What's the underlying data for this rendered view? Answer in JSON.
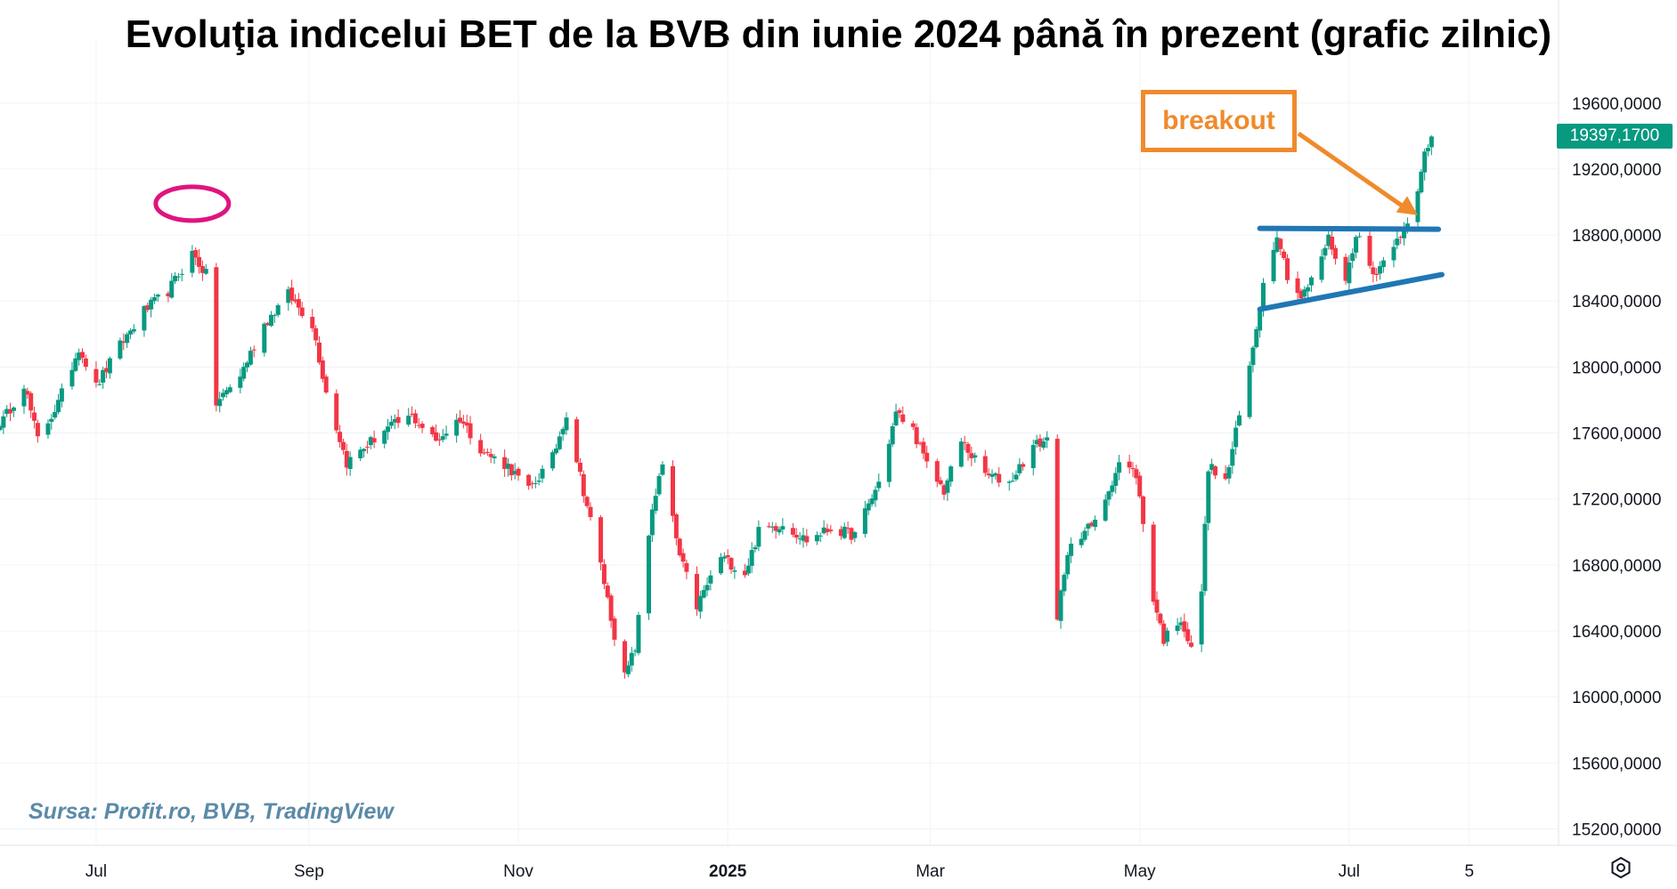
{
  "chart_data": {
    "type": "candlestick",
    "title": "Evoluţia indicelui BET de la BVB din iunie 2024 până în prezent (grafic zilnic)",
    "source": "Sursa: Profit.ro, BVB, TradingView",
    "y_ticks": [
      "19600,0000",
      "19200,0000",
      "18800,0000",
      "18400,0000",
      "18000,0000",
      "17600,0000",
      "17200,0000",
      "16800,0000",
      "16400,0000",
      "16000,0000",
      "15600,0000",
      "15200,0000"
    ],
    "y_tick_values": [
      19600,
      19200,
      18800,
      18400,
      18000,
      17600,
      17200,
      16800,
      16400,
      16000,
      15600,
      15200
    ],
    "x_ticks": [
      {
        "label": "Jul",
        "date": "2024-07-01"
      },
      {
        "label": "Sep",
        "date": "2024-09-01"
      },
      {
        "label": "Nov",
        "date": "2024-11-01"
      },
      {
        "label": "2025",
        "date": "2025-01-01",
        "bold": true
      },
      {
        "label": "Mar",
        "date": "2025-03-01"
      },
      {
        "label": "May",
        "date": "2025-05-01"
      },
      {
        "label": "Jul",
        "date": "2025-07-01"
      },
      {
        "label": "5",
        "date": "2025-08-05"
      }
    ],
    "ylim": [
      15100,
      19820
    ],
    "xlim": [
      "2024-06-03",
      "2025-08-31"
    ],
    "last_price": "19397,1700",
    "last_price_value": 19397.17,
    "up_color": "#089981",
    "down_color": "#f23645",
    "anchor_closes": [
      [
        "2024-06-03",
        17640
      ],
      [
        "2024-06-10",
        17900
      ],
      [
        "2024-06-14",
        17560
      ],
      [
        "2024-06-20",
        17780
      ],
      [
        "2024-06-26",
        18120
      ],
      [
        "2024-07-01",
        17880
      ],
      [
        "2024-07-08",
        18130
      ],
      [
        "2024-07-15",
        18340
      ],
      [
        "2024-07-22",
        18460
      ],
      [
        "2024-07-29",
        18690
      ],
      [
        "2024-08-02",
        18560
      ],
      [
        "2024-08-05",
        17780
      ],
      [
        "2024-08-12",
        17950
      ],
      [
        "2024-08-19",
        18260
      ],
      [
        "2024-08-26",
        18440
      ],
      [
        "2024-09-02",
        18260
      ],
      [
        "2024-09-06",
        17850
      ],
      [
        "2024-09-12",
        17420
      ],
      [
        "2024-09-23",
        17620
      ],
      [
        "2024-10-01",
        17700
      ],
      [
        "2024-10-08",
        17550
      ],
      [
        "2024-10-15",
        17690
      ],
      [
        "2024-10-22",
        17480
      ],
      [
        "2024-10-29",
        17400
      ],
      [
        "2024-11-04",
        17250
      ],
      [
        "2024-11-11",
        17450
      ],
      [
        "2024-11-15",
        17720
      ],
      [
        "2024-11-20",
        17250
      ],
      [
        "2024-11-25",
        16800
      ],
      [
        "2024-11-29",
        16380
      ],
      [
        "2024-12-02",
        16120
      ],
      [
        "2024-12-05",
        16300
      ],
      [
        "2024-12-10",
        17150
      ],
      [
        "2024-12-13",
        17400
      ],
      [
        "2024-12-18",
        16850
      ],
      [
        "2024-12-23",
        16550
      ],
      [
        "2024-12-30",
        16850
      ],
      [
        "2025-01-06",
        16750
      ],
      [
        "2025-01-10",
        17000
      ],
      [
        "2025-01-17",
        17050
      ],
      [
        "2025-01-24",
        16950
      ],
      [
        "2025-01-31",
        17020
      ],
      [
        "2025-02-07",
        16980
      ],
      [
        "2025-02-14",
        17300
      ],
      [
        "2025-02-19",
        17720
      ],
      [
        "2025-02-24",
        17620
      ],
      [
        "2025-02-28",
        17400
      ],
      [
        "2025-03-05",
        17250
      ],
      [
        "2025-03-10",
        17550
      ],
      [
        "2025-03-17",
        17350
      ],
      [
        "2025-03-24",
        17300
      ],
      [
        "2025-03-31",
        17520
      ],
      [
        "2025-04-04",
        17560
      ],
      [
        "2025-04-07",
        16500
      ],
      [
        "2025-04-11",
        16950
      ],
      [
        "2025-04-18",
        17050
      ],
      [
        "2025-04-25",
        17420
      ],
      [
        "2025-04-30",
        17350
      ],
      [
        "2025-05-05",
        16600
      ],
      [
        "2025-05-08",
        16350
      ],
      [
        "2025-05-13",
        16480
      ],
      [
        "2025-05-16",
        16280
      ],
      [
        "2025-05-19",
        16650
      ],
      [
        "2025-05-21",
        17400
      ],
      [
        "2025-05-26",
        17300
      ],
      [
        "2025-06-02",
        18000
      ],
      [
        "2025-06-06",
        18500
      ],
      [
        "2025-06-10",
        18820
      ],
      [
        "2025-06-13",
        18560
      ],
      [
        "2025-06-17",
        18420
      ],
      [
        "2025-06-20",
        18520
      ],
      [
        "2025-06-25",
        18780
      ],
      [
        "2025-06-30",
        18520
      ],
      [
        "2025-07-03",
        18820
      ],
      [
        "2025-07-08",
        18560
      ],
      [
        "2025-07-11",
        18640
      ],
      [
        "2025-07-15",
        18800
      ],
      [
        "2025-07-18",
        18850
      ],
      [
        "2025-07-21",
        19050
      ],
      [
        "2025-07-23",
        19300
      ],
      [
        "2025-07-25",
        19397
      ]
    ],
    "annotations": [
      {
        "type": "ellipse",
        "color": "#e0147f",
        "center": [
          "2024-07-29",
          18990
        ]
      },
      {
        "type": "line",
        "color": "#1f77b4",
        "from": [
          "2025-06-05",
          18840
        ],
        "to": [
          "2025-07-27",
          18835
        ]
      },
      {
        "type": "line",
        "color": "#1f77b4",
        "from": [
          "2025-06-05",
          18350
        ],
        "to": [
          "2025-07-28",
          18560
        ]
      },
      {
        "type": "arrow",
        "color": "#f08a2c",
        "to": [
          "2025-07-21",
          18920
        ]
      },
      {
        "type": "label",
        "text": "breakout",
        "color": "#f08a2c"
      }
    ]
  }
}
